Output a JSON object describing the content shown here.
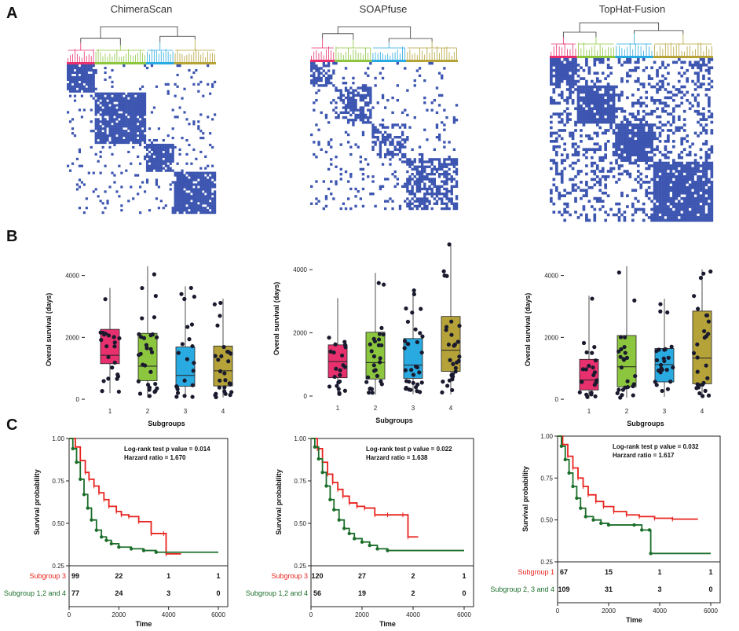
{
  "panels": {
    "a": "A",
    "b": "B",
    "c": "C"
  },
  "colors": {
    "c1": "#e8306f",
    "c2": "#8cc63f",
    "c3": "#29aae1",
    "c4": "#b5a33a",
    "heat": "#3c55b0",
    "red": "#e8231f",
    "green": "#1b6e2a",
    "tree": "#333333"
  },
  "methods": [
    {
      "title": "ChimeraScan",
      "chart_data": {
        "type": "heatmap",
        "title": "ChimeraScan",
        "description_note": "consensus clustering matrix with 4 clusters",
        "cluster_sizes": [
          12,
          22,
          12,
          18
        ],
        "box": {
          "type": "box",
          "xlabel": "Subgroups",
          "ylabel": "Overal survival (days)",
          "categories": [
            "1",
            "2",
            "3",
            "4"
          ],
          "yticks": [
            0,
            2000,
            4000
          ],
          "ylim": [
            -100,
            4600
          ],
          "series": [
            {
              "name": "1",
              "q1": 1150,
              "median": 1420,
              "q3": 2260,
              "whisker_low": 200,
              "whisker_high": 3600
            },
            {
              "name": "2",
              "q1": 600,
              "median": 1070,
              "q3": 2130,
              "whisker_low": 60,
              "whisker_high": 4300
            },
            {
              "name": "3",
              "q1": 420,
              "median": 770,
              "q3": 1690,
              "whisker_low": 50,
              "whisker_high": 3650
            },
            {
              "name": "4",
              "q1": 430,
              "median": 920,
              "q3": 1720,
              "whisker_low": 60,
              "whisker_high": 3250
            }
          ]
        },
        "km": {
          "type": "line",
          "xlabel": "Time",
          "ylabel": "Survival probability",
          "xlim": [
            0,
            6000
          ],
          "ylim": [
            0.25,
            1.0
          ],
          "xticks": [
            0,
            2000,
            4000,
            6000
          ],
          "yticks": [
            0.25,
            0.5,
            0.75,
            1.0
          ],
          "stat1": "Log-rank test p value = 0.014",
          "stat2": "Harzard ratio = 1.670",
          "series": [
            {
              "name": "Subgroup 3",
              "color": "red",
              "x": [
                0,
                250,
                450,
                650,
                800,
                1000,
                1200,
                1400,
                1600,
                1900,
                2100,
                2400,
                2800,
                3300,
                3800,
                3900,
                4500
              ],
              "y": [
                1.0,
                0.95,
                0.87,
                0.8,
                0.76,
                0.72,
                0.68,
                0.64,
                0.6,
                0.57,
                0.55,
                0.54,
                0.51,
                0.44,
                0.44,
                0.32,
                0.32
              ],
              "risk": [
                99,
                22,
                1,
                1
              ]
            },
            {
              "name": "Subgroup 1,2 and 4",
              "color": "green",
              "x": [
                0,
                150,
                300,
                450,
                600,
                750,
                900,
                1100,
                1300,
                1500,
                1700,
                2000,
                2500,
                3000,
                3500,
                6000
              ],
              "y": [
                1.0,
                0.94,
                0.86,
                0.76,
                0.67,
                0.59,
                0.52,
                0.46,
                0.42,
                0.4,
                0.38,
                0.36,
                0.35,
                0.34,
                0.33,
                0.33
              ],
              "risk": [
                77,
                24,
                3,
                0
              ]
            }
          ]
        }
      }
    },
    {
      "title": "SOAPfuse",
      "chart_data": {
        "type": "heatmap",
        "title": "SOAPfuse",
        "cluster_sizes": [
          10,
          15,
          14,
          21
        ],
        "box": {
          "type": "box",
          "xlabel": "Subgroups",
          "ylabel": "Overal survival (days)",
          "categories": [
            "1",
            "2",
            "3",
            "4"
          ],
          "yticks": [
            0,
            2000,
            4000
          ],
          "ylim": [
            -100,
            5000
          ],
          "series": [
            {
              "name": "1",
              "q1": 580,
              "median": 1090,
              "q3": 1620,
              "whisker_low": 30,
              "whisker_high": 3100
            },
            {
              "name": "2",
              "q1": 540,
              "median": 1060,
              "q3": 2020,
              "whisker_low": 40,
              "whisker_high": 3900
            },
            {
              "name": "3",
              "q1": 560,
              "median": 980,
              "q3": 1820,
              "whisker_low": 60,
              "whisker_high": 3350
            },
            {
              "name": "4",
              "q1": 780,
              "median": 1450,
              "q3": 2520,
              "whisker_low": 50,
              "whisker_high": 4850
            }
          ]
        },
        "km": {
          "type": "line",
          "xlabel": "Time",
          "ylabel": "Survival probability",
          "xlim": [
            0,
            6000
          ],
          "ylim": [
            0.25,
            1.0
          ],
          "xticks": [
            0,
            2000,
            4000,
            6000
          ],
          "yticks": [
            0.25,
            0.5,
            0.75,
            1.0
          ],
          "stat1": "Log-rank test p value = 0.022",
          "stat2": "Harzard ratio = 1.638",
          "series": [
            {
              "name": "Subgroup 3",
              "color": "red",
              "x": [
                0,
                250,
                450,
                650,
                850,
                1050,
                1250,
                1500,
                1800,
                2100,
                2500,
                3000,
                3600,
                3800,
                4200
              ],
              "y": [
                1.0,
                0.94,
                0.86,
                0.79,
                0.74,
                0.7,
                0.66,
                0.62,
                0.6,
                0.59,
                0.55,
                0.55,
                0.55,
                0.42,
                0.42
              ],
              "risk": [
                120,
                27,
                2,
                1
              ]
            },
            {
              "name": "Subgroup 1,2 and 4",
              "color": "green",
              "x": [
                0,
                150,
                300,
                450,
                600,
                750,
                900,
                1100,
                1300,
                1500,
                1700,
                2000,
                2300,
                2600,
                3000,
                6000
              ],
              "y": [
                1.0,
                0.95,
                0.88,
                0.8,
                0.72,
                0.64,
                0.58,
                0.52,
                0.47,
                0.44,
                0.41,
                0.39,
                0.37,
                0.35,
                0.34,
                0.34
              ],
              "risk": [
                56,
                19,
                2,
                0
              ]
            }
          ]
        }
      }
    },
    {
      "title": "TopHat-Fusion",
      "chart_data": {
        "type": "heatmap",
        "title": "TopHat-Fusion",
        "cluster_sizes": [
          10,
          14,
          14,
          22
        ],
        "box": {
          "type": "box",
          "xlabel": "Subgroups",
          "ylabel": "Overal survival (days)",
          "categories": [
            "1",
            "2",
            "3",
            "4"
          ],
          "yticks": [
            0,
            2000,
            4000
          ],
          "ylim": [
            -100,
            4600
          ],
          "series": [
            {
              "name": "1",
              "q1": 300,
              "median": 620,
              "q3": 1290,
              "whisker_low": 20,
              "whisker_high": 3350
            },
            {
              "name": "2",
              "q1": 400,
              "median": 1050,
              "q3": 2060,
              "whisker_low": 50,
              "whisker_high": 4300
            },
            {
              "name": "3",
              "q1": 560,
              "median": 1120,
              "q3": 1640,
              "whisker_low": 80,
              "whisker_high": 3250
            },
            {
              "name": "4",
              "q1": 500,
              "median": 1330,
              "q3": 2850,
              "whisker_low": 100,
              "whisker_high": 4200
            }
          ]
        },
        "km": {
          "type": "line",
          "xlabel": "Time",
          "ylabel": "Survival probability",
          "xlim": [
            0,
            6000
          ],
          "ylim": [
            0.25,
            1.0
          ],
          "xticks": [
            0,
            2000,
            4000,
            6000
          ],
          "yticks": [
            0.25,
            0.5,
            0.75,
            1.0
          ],
          "stat1": "Log-rank test p value = 0.032",
          "stat2": "Harzard ratio = 1.617",
          "series": [
            {
              "name": "Subgroup 1",
              "color": "red",
              "x": [
                0,
                200,
                400,
                600,
                800,
                1000,
                1200,
                1500,
                1800,
                2200,
                2700,
                3200,
                3800,
                4500,
                5500
              ],
              "y": [
                1.0,
                0.95,
                0.88,
                0.81,
                0.75,
                0.7,
                0.65,
                0.61,
                0.58,
                0.55,
                0.53,
                0.52,
                0.51,
                0.505,
                0.505
              ],
              "risk": [
                67,
                15,
                1,
                1
              ]
            },
            {
              "name": "Subgroup 2, 3 and 4",
              "color": "green",
              "x": [
                0,
                150,
                300,
                450,
                600,
                750,
                900,
                1100,
                1400,
                1700,
                2000,
                3000,
                3300,
                3600,
                3650,
                6000
              ],
              "y": [
                1.0,
                0.94,
                0.86,
                0.78,
                0.7,
                0.63,
                0.57,
                0.52,
                0.5,
                0.48,
                0.47,
                0.47,
                0.44,
                0.44,
                0.3,
                0.3
              ],
              "risk": [
                109,
                31,
                3,
                0
              ]
            }
          ]
        }
      }
    }
  ]
}
